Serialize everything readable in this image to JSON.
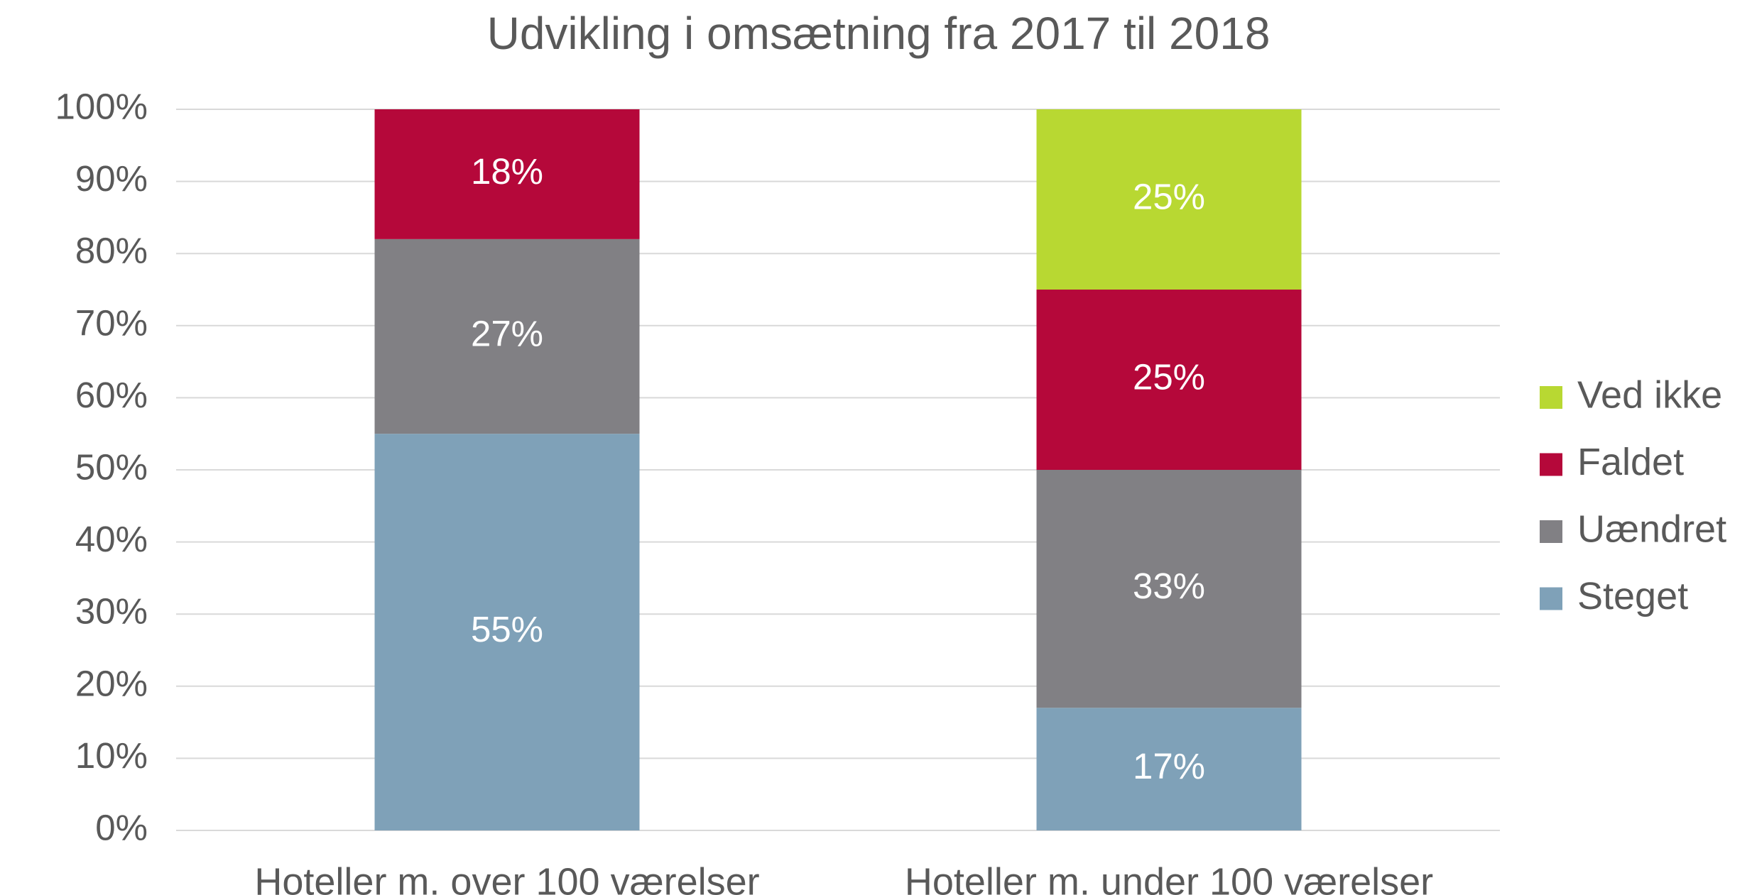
{
  "chart_data": {
    "type": "stacked_bar",
    "title": "Udvikling i omsætning fra 2017 til 2018",
    "categories": [
      "Hoteller m. over 100 værelser",
      "Hoteller m. under 100 værelser"
    ],
    "series": [
      {
        "name": "Steget",
        "color": "#7fa1b8",
        "values": [
          55,
          17
        ],
        "value_labels": [
          "55%",
          "17%"
        ]
      },
      {
        "name": "Uændret",
        "color": "#818084",
        "values": [
          27,
          33
        ],
        "value_labels": [
          "27%",
          "33%"
        ]
      },
      {
        "name": "Faldet",
        "color": "#b5083a",
        "values": [
          18,
          25
        ],
        "value_labels": [
          "18%",
          "25%"
        ]
      },
      {
        "name": "Ved ikke",
        "color": "#b8d832",
        "values": [
          null,
          25
        ],
        "value_labels": [
          null,
          "25%"
        ]
      }
    ],
    "ylim": [
      0,
      100
    ],
    "yticks": [
      {
        "value": 0,
        "label": "0%"
      },
      {
        "value": 10,
        "label": "10%"
      },
      {
        "value": 20,
        "label": "20%"
      },
      {
        "value": 30,
        "label": "30%"
      },
      {
        "value": 40,
        "label": "40%"
      },
      {
        "value": 50,
        "label": "50%"
      },
      {
        "value": 60,
        "label": "60%"
      },
      {
        "value": 70,
        "label": "70%"
      },
      {
        "value": 80,
        "label": "80%"
      },
      {
        "value": 90,
        "label": "90%"
      },
      {
        "value": 100,
        "label": "100%"
      }
    ],
    "grid": true,
    "legend": "right"
  }
}
